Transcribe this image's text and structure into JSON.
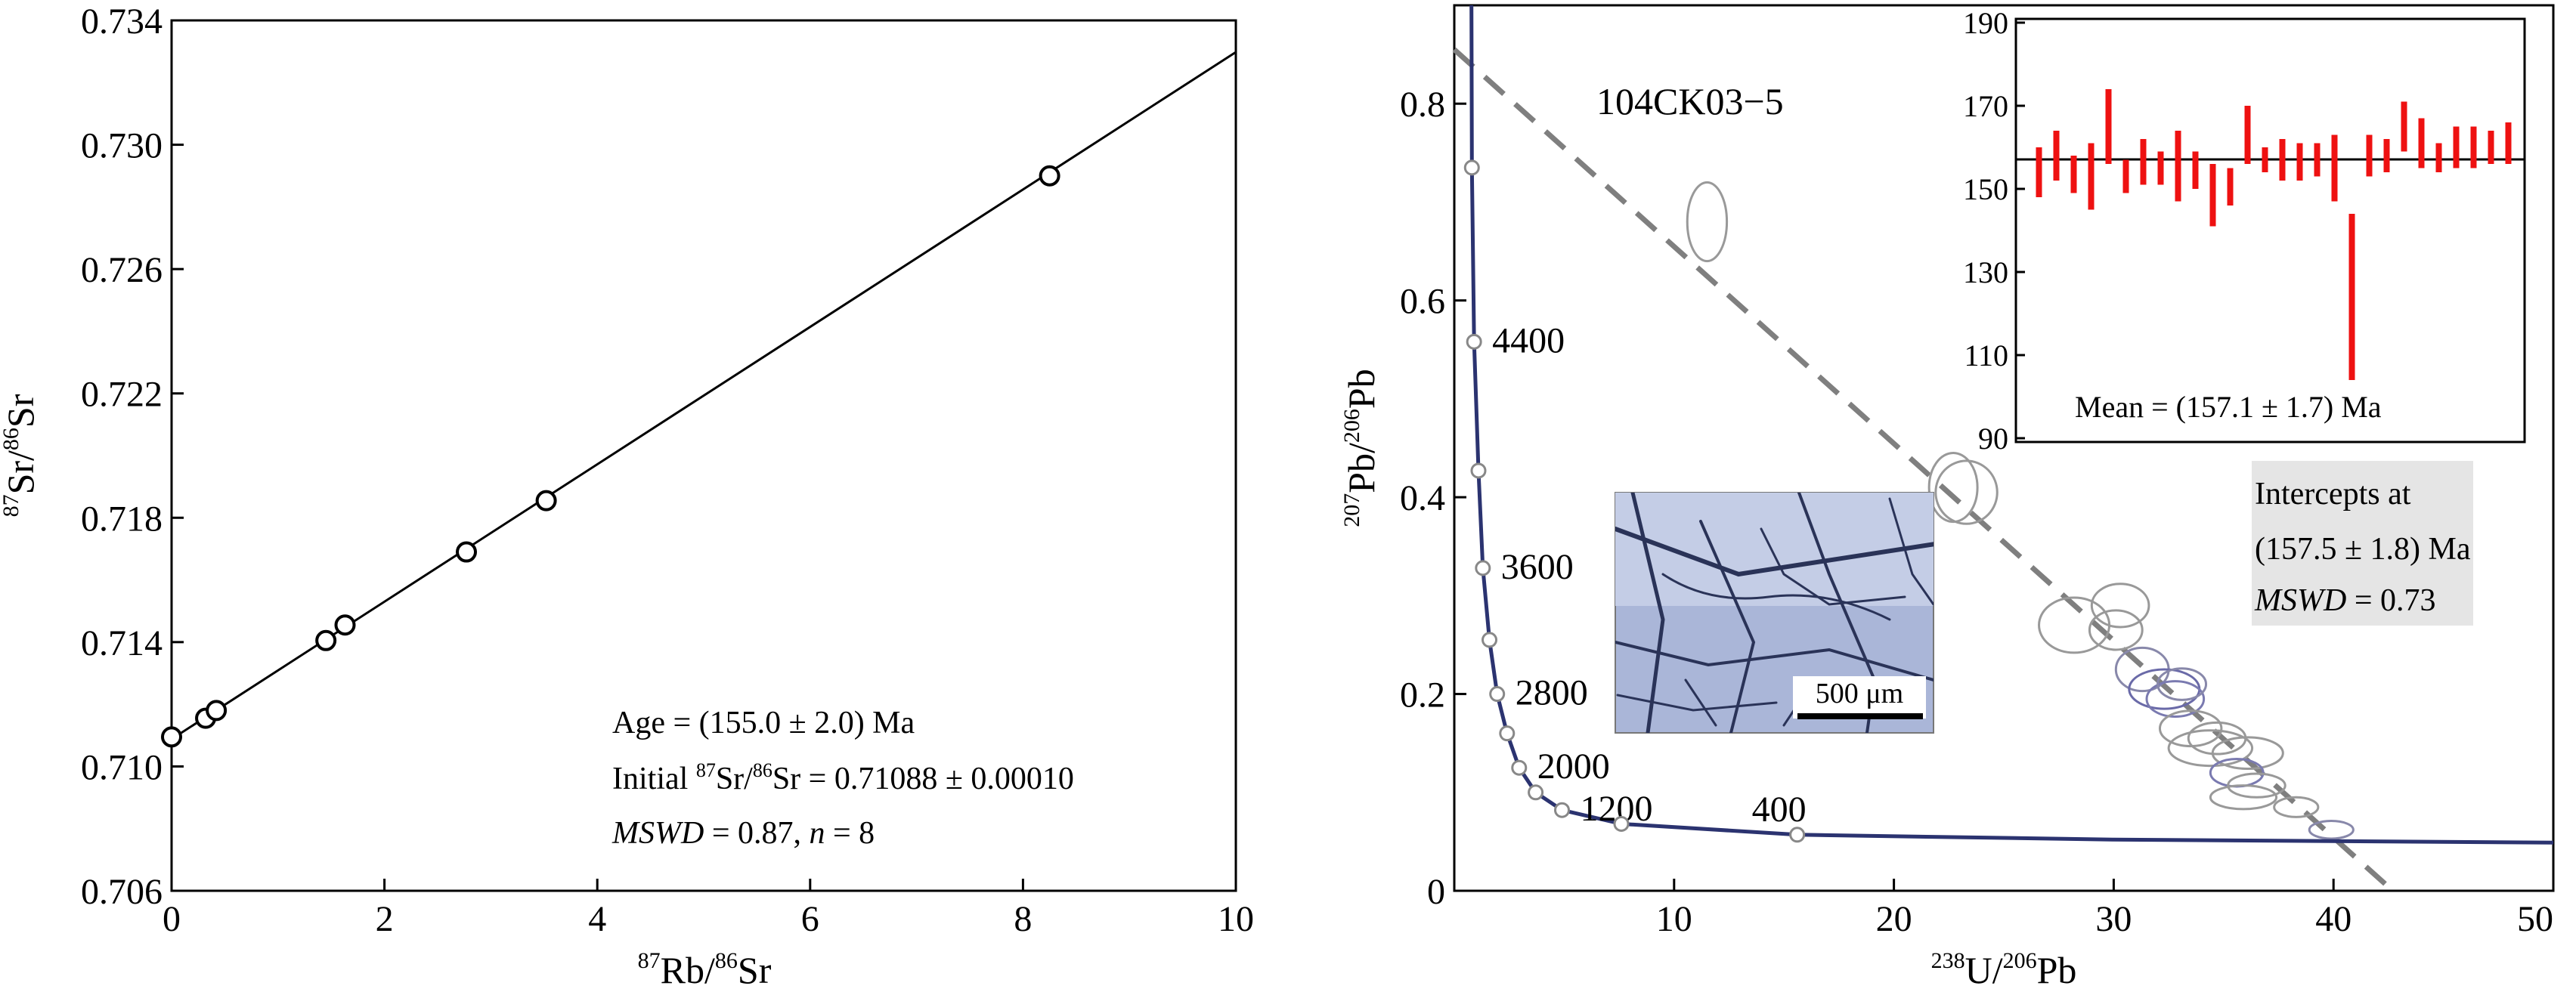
{
  "chart_data": [
    {
      "type": "scatter",
      "xlabel": {
        "sup1": "87",
        "a": "Rb/",
        "sup2": "86",
        "b": "Sr"
      },
      "ylabel": {
        "sup1": "87",
        "a": "Sr/",
        "sup2": "86",
        "b": "Sr"
      },
      "xlim": [
        0,
        10
      ],
      "ylim": [
        0.706,
        0.734
      ],
      "xticks": [
        "0",
        "2",
        "4",
        "6",
        "8",
        "10"
      ],
      "yticks": [
        "0.706",
        "0.710",
        "0.714",
        "0.718",
        "0.722",
        "0.726",
        "0.730",
        "0.734"
      ],
      "points": [
        {
          "x": 0.0,
          "y": 0.71095
        },
        {
          "x": 0.32,
          "y": 0.71155
        },
        {
          "x": 0.42,
          "y": 0.7118
        },
        {
          "x": 1.45,
          "y": 0.71405
        },
        {
          "x": 1.63,
          "y": 0.71455
        },
        {
          "x": 2.77,
          "y": 0.7169
        },
        {
          "x": 3.52,
          "y": 0.71855
        },
        {
          "x": 8.25,
          "y": 0.729
        }
      ],
      "fit_line": {
        "x": [
          0,
          10
        ],
        "y": [
          0.71088,
          0.73298
        ]
      },
      "annotations": {
        "age": "Age = (155.0 ± 2.0) Ma",
        "initial_prefix": "Initial ",
        "initial_sup1": "87",
        "initial_mid": "Sr/",
        "initial_sup2": "86",
        "initial_suffix": "Sr = 0.71088 ± 0.00010",
        "mswd_label": "MSWD",
        "mswd_value": " = 0.87, ",
        "n_label": "n",
        "n_value": " = 8"
      }
    },
    {
      "type": "scatter",
      "sample": "104CK03−5",
      "xlabel": {
        "sup1": "238",
        "a": "U/",
        "sup2": "206",
        "b": "Pb"
      },
      "ylabel": {
        "sup1": "207",
        "a": "Pb/",
        "sup2": "206",
        "b": "Pb"
      },
      "xlim": [
        0,
        50
      ],
      "ylim": [
        0,
        0.9
      ],
      "xticks": [
        "10",
        "20",
        "30",
        "40",
        "50"
      ],
      "yticks": [
        "0",
        "0.2",
        "0.4",
        "0.6",
        "0.8"
      ],
      "concordia_ages": [
        {
          "label": "",
          "x": 0.8,
          "y": 0.735
        },
        {
          "label": "4400",
          "x": 0.9,
          "y": 0.558
        },
        {
          "label": "",
          "x": 1.1,
          "y": 0.427
        },
        {
          "label": "3600",
          "x": 1.3,
          "y": 0.328
        },
        {
          "label": "",
          "x": 1.6,
          "y": 0.255
        },
        {
          "label": "2800",
          "x": 1.95,
          "y": 0.2
        },
        {
          "label": "",
          "x": 2.4,
          "y": 0.16
        },
        {
          "label": "2000",
          "x": 2.95,
          "y": 0.125
        },
        {
          "label": "",
          "x": 3.7,
          "y": 0.1
        },
        {
          "label": "1200",
          "x": 4.9,
          "y": 0.082
        },
        {
          "label": "",
          "x": 7.6,
          "y": 0.068
        },
        {
          "label": "400",
          "x": 15.6,
          "y": 0.057
        }
      ],
      "discordia_line": {
        "x": [
          0,
          42.7
        ],
        "y": [
          0.855,
          0.0
        ]
      },
      "ellipses": [
        {
          "x": 11.5,
          "y": 0.68,
          "rx": 0.9,
          "ry": 0.04,
          "color": "#999999"
        },
        {
          "x": 22.7,
          "y": 0.41,
          "rx": 1.1,
          "ry": 0.035,
          "color": "#999999"
        },
        {
          "x": 23.3,
          "y": 0.405,
          "rx": 1.4,
          "ry": 0.032,
          "color": "#999999"
        },
        {
          "x": 28.2,
          "y": 0.27,
          "rx": 1.6,
          "ry": 0.028,
          "color": "#999999"
        },
        {
          "x": 30.3,
          "y": 0.29,
          "rx": 1.3,
          "ry": 0.022,
          "color": "#999999"
        },
        {
          "x": 30.1,
          "y": 0.265,
          "rx": 1.2,
          "ry": 0.02,
          "color": "#999999"
        },
        {
          "x": 31.3,
          "y": 0.225,
          "rx": 1.2,
          "ry": 0.022,
          "color": "#8888aa"
        },
        {
          "x": 32.3,
          "y": 0.205,
          "rx": 1.6,
          "ry": 0.02,
          "color": "#6a6aa8"
        },
        {
          "x": 32.8,
          "y": 0.195,
          "rx": 1.3,
          "ry": 0.018,
          "color": "#7a7ab0"
        },
        {
          "x": 33.1,
          "y": 0.21,
          "rx": 1.1,
          "ry": 0.016,
          "color": "#8888aa"
        },
        {
          "x": 33.5,
          "y": 0.165,
          "rx": 1.4,
          "ry": 0.018,
          "color": "#999999"
        },
        {
          "x": 34.7,
          "y": 0.155,
          "rx": 1.3,
          "ry": 0.016,
          "color": "#999999"
        },
        {
          "x": 34.4,
          "y": 0.145,
          "rx": 1.9,
          "ry": 0.018,
          "color": "#999999"
        },
        {
          "x": 36.1,
          "y": 0.14,
          "rx": 1.6,
          "ry": 0.016,
          "color": "#999999"
        },
        {
          "x": 35.6,
          "y": 0.12,
          "rx": 1.2,
          "ry": 0.014,
          "color": "#7a7ab0"
        },
        {
          "x": 36.5,
          "y": 0.107,
          "rx": 1.3,
          "ry": 0.012,
          "color": "#999999"
        },
        {
          "x": 35.9,
          "y": 0.095,
          "rx": 1.5,
          "ry": 0.012,
          "color": "#999999"
        },
        {
          "x": 38.3,
          "y": 0.085,
          "rx": 1.0,
          "ry": 0.01,
          "color": "#999999"
        },
        {
          "x": 39.9,
          "y": 0.062,
          "rx": 1.0,
          "ry": 0.009,
          "color": "#8888aa"
        }
      ],
      "inset_image": {
        "scale_label": "500 μm"
      },
      "inset_chart": {
        "type": "bar",
        "ylim": [
          90,
          190
        ],
        "yticks": [
          "90",
          "110",
          "130",
          "150",
          "170",
          "190"
        ],
        "mean": 157.1,
        "mean_label": "Mean = (157.1 ± 1.7) Ma",
        "color": "#ee1111",
        "bars": [
          {
            "lo": 148,
            "hi": 160
          },
          {
            "lo": 152,
            "hi": 164
          },
          {
            "lo": 149,
            "hi": 158
          },
          {
            "lo": 145,
            "hi": 161
          },
          {
            "lo": 156,
            "hi": 174
          },
          {
            "lo": 149,
            "hi": 157
          },
          {
            "lo": 151,
            "hi": 162
          },
          {
            "lo": 151,
            "hi": 159
          },
          {
            "lo": 147,
            "hi": 164
          },
          {
            "lo": 150,
            "hi": 159
          },
          {
            "lo": 141,
            "hi": 156
          },
          {
            "lo": 146,
            "hi": 155
          },
          {
            "lo": 156,
            "hi": 170
          },
          {
            "lo": 154,
            "hi": 160
          },
          {
            "lo": 152,
            "hi": 162
          },
          {
            "lo": 152,
            "hi": 161
          },
          {
            "lo": 153,
            "hi": 161
          },
          {
            "lo": 147,
            "hi": 163
          },
          {
            "lo": 104,
            "hi": 144
          },
          {
            "lo": 153,
            "hi": 163
          },
          {
            "lo": 154,
            "hi": 162
          },
          {
            "lo": 159,
            "hi": 171
          },
          {
            "lo": 155,
            "hi": 167
          },
          {
            "lo": 154,
            "hi": 161
          },
          {
            "lo": 155,
            "hi": 165
          },
          {
            "lo": 155,
            "hi": 165
          },
          {
            "lo": 156,
            "hi": 164
          },
          {
            "lo": 156,
            "hi": 166
          }
        ]
      },
      "intercepts": {
        "line1": "Intercepts at",
        "line2": "(157.5 ± 1.8) Ma",
        "mswd_label": "MSWD",
        "mswd_value": " = 0.73"
      }
    }
  ]
}
